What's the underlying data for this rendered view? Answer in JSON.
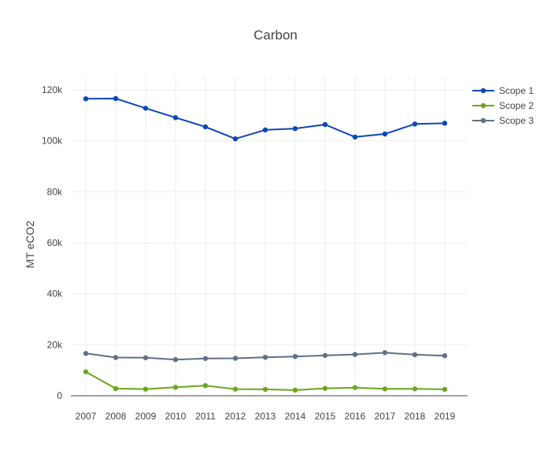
{
  "chart_data": {
    "type": "line",
    "title": "Carbon",
    "xlabel": "",
    "ylabel": "MT eCO2",
    "x": [
      "2007",
      "2008",
      "2009",
      "2010",
      "2011",
      "2012",
      "2013",
      "2014",
      "2015",
      "2016",
      "2017",
      "2018",
      "2019"
    ],
    "ylim": [
      0,
      125000
    ],
    "yticks": [
      0,
      20000,
      40000,
      60000,
      80000,
      100000,
      120000
    ],
    "ytick_labels": [
      "0",
      "20k",
      "40k",
      "60k",
      "80k",
      "100k",
      "120k"
    ],
    "grid": true,
    "legend": "top-right",
    "series": [
      {
        "name": "Scope 1",
        "color": "#0d47b5",
        "values": [
          116500,
          116600,
          112800,
          109100,
          105500,
          100800,
          104300,
          104800,
          106400,
          101500,
          102700,
          106600,
          106900
        ]
      },
      {
        "name": "Scope 2",
        "color": "#6aa81b",
        "values": [
          9400,
          2800,
          2600,
          3300,
          4000,
          2600,
          2500,
          2200,
          2900,
          3200,
          2700,
          2700,
          2500
        ]
      },
      {
        "name": "Scope 3",
        "color": "#607085",
        "values": [
          16600,
          15000,
          14900,
          14200,
          14600,
          14700,
          15100,
          15400,
          15800,
          16200,
          16900,
          16100,
          15700
        ]
      }
    ]
  }
}
